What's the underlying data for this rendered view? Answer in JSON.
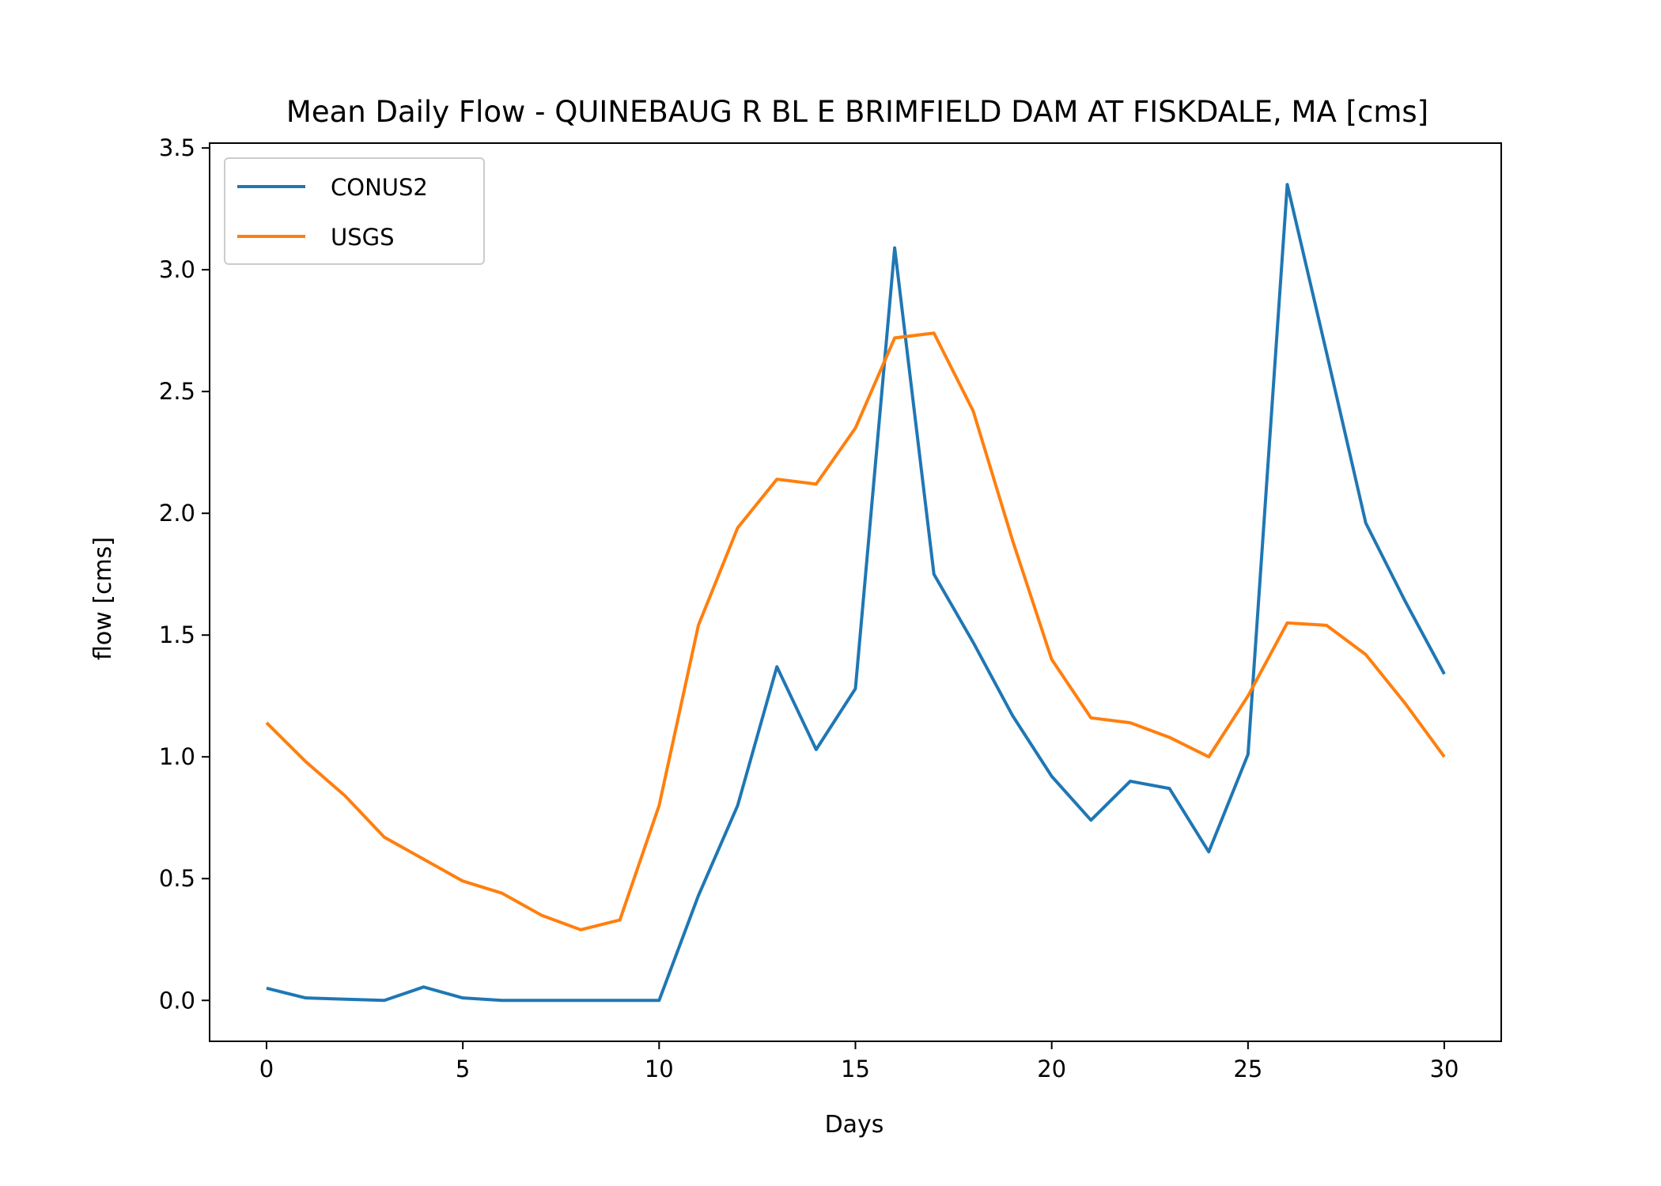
{
  "chart_data": {
    "type": "line",
    "title": "Mean Daily Flow - QUINEBAUG R BL E BRIMFIELD DAM AT FISKDALE, MA [cms]",
    "xlabel": "Days",
    "ylabel": "flow [cms]",
    "xlim": [
      -1.45,
      31.45
    ],
    "ylim": [
      -0.168,
      3.52
    ],
    "x_ticks": [
      0,
      5,
      10,
      15,
      20,
      25,
      30
    ],
    "y_ticks": [
      0.0,
      0.5,
      1.0,
      1.5,
      2.0,
      2.5,
      3.0,
      3.5
    ],
    "x_tick_labels": [
      "0",
      "5",
      "10",
      "15",
      "20",
      "25",
      "30"
    ],
    "y_tick_labels": [
      "0.0",
      "0.5",
      "1.0",
      "1.5",
      "2.0",
      "2.5",
      "3.0",
      "3.5"
    ],
    "grid": false,
    "legend_position": "upper left",
    "x": [
      0,
      1,
      2,
      3,
      4,
      5,
      6,
      7,
      8,
      9,
      10,
      11,
      12,
      13,
      14,
      15,
      16,
      17,
      18,
      19,
      20,
      21,
      22,
      23,
      24,
      25,
      26,
      27,
      28,
      29,
      30
    ],
    "series": [
      {
        "name": "CONUS2",
        "color": "#1f77b4",
        "values": [
          0.05,
          0.01,
          0.005,
          0.0,
          0.055,
          0.01,
          0.0,
          0.0,
          0.0,
          0.0,
          0.0,
          0.43,
          0.8,
          1.37,
          1.03,
          1.28,
          3.09,
          1.75,
          1.47,
          1.17,
          0.92,
          0.74,
          0.9,
          0.87,
          0.61,
          1.01,
          3.35,
          2.66,
          1.96,
          1.64,
          1.34
        ]
      },
      {
        "name": "USGS",
        "color": "#ff7f0e",
        "values": [
          1.14,
          0.98,
          0.84,
          0.67,
          0.58,
          0.49,
          0.44,
          0.35,
          0.29,
          0.33,
          0.8,
          1.54,
          1.94,
          2.14,
          2.12,
          2.35,
          2.72,
          2.74,
          2.42,
          1.89,
          1.4,
          1.16,
          1.14,
          1.08,
          1.0,
          1.25,
          1.55,
          1.54,
          1.42,
          1.22,
          1.0
        ]
      }
    ]
  }
}
